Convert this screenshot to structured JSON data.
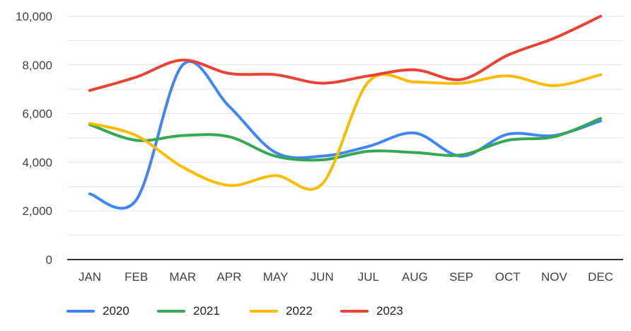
{
  "chart_data": {
    "type": "line",
    "title": "",
    "smooth": true,
    "grid": true,
    "legend_position": "bottom",
    "categories": [
      "JAN",
      "FEB",
      "MAR",
      "APR",
      "MAY",
      "JUN",
      "JUL",
      "AUG",
      "SEP",
      "OCT",
      "NOV",
      "DEC"
    ],
    "series": [
      {
        "name": "2020",
        "color": "#4285F4",
        "values": [
          2700,
          2450,
          8000,
          6300,
          4400,
          4250,
          4650,
          5200,
          4250,
          5150,
          5100,
          5700
        ]
      },
      {
        "name": "2021",
        "color": "#34A853",
        "values": [
          5550,
          4900,
          5100,
          5050,
          4250,
          4100,
          4450,
          4400,
          4300,
          4900,
          5050,
          5800
        ]
      },
      {
        "name": "2022",
        "color": "#FBBC04",
        "values": [
          5600,
          5100,
          3800,
          3050,
          3450,
          3100,
          7300,
          7300,
          7250,
          7550,
          7150,
          7600
        ]
      },
      {
        "name": "2023",
        "color": "#EA4335",
        "values": [
          6950,
          7500,
          8200,
          7650,
          7600,
          7250,
          7550,
          7800,
          7400,
          8400,
          9100,
          10000
        ]
      }
    ],
    "y_axis": {
      "min": 0,
      "max": 10000,
      "gridline_step": 1000,
      "label_step": 2000,
      "tick_labels": [
        "0",
        "2,000",
        "4,000",
        "6,000",
        "8,000",
        "10,000"
      ]
    },
    "x_axis": {
      "labels": [
        "JAN",
        "FEB",
        "MAR",
        "APR",
        "MAY",
        "JUN",
        "JUL",
        "AUG",
        "SEP",
        "OCT",
        "NOV",
        "DEC"
      ]
    }
  },
  "colors": {
    "background": "#ffffff",
    "gridline": "#e3e3e3",
    "axis_line": "#333333",
    "axis_label": "#424242",
    "legend_text": "#202124"
  }
}
